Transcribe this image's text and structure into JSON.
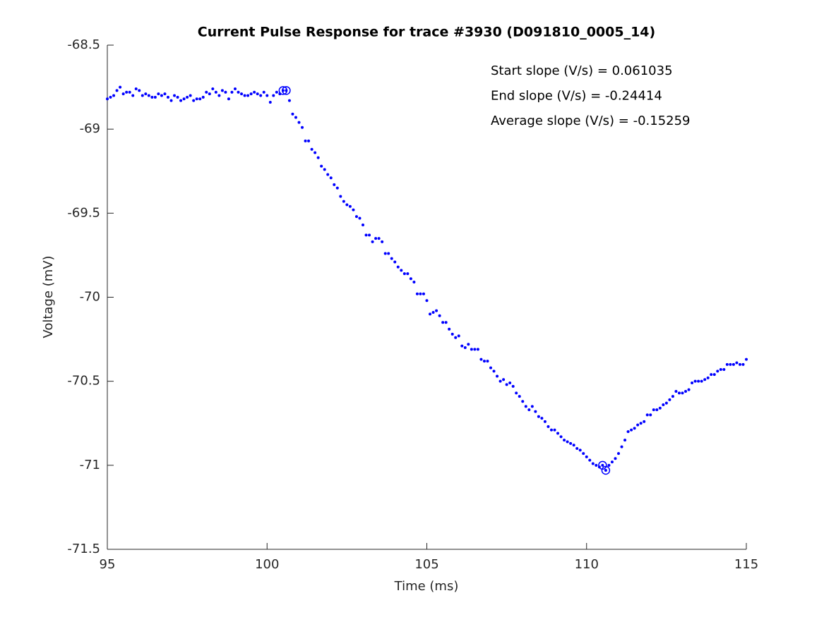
{
  "chart_data": {
    "type": "scatter",
    "title": "Current Pulse Response for trace #3930 (D091810_0005_14)",
    "x_label": "Time (ms)",
    "y_label": "Voltage (mV)",
    "annotations": [
      "Start slope (V/s) = 0.061035",
      "End slope (V/s) = -0.24414",
      "Average slope (V/s) = -0.15259"
    ],
    "xlim": [
      95,
      115
    ],
    "xticks": [
      95,
      100,
      105,
      110,
      115
    ],
    "ylim": [
      -71.5,
      -68.5
    ],
    "yticks": [
      -68.5,
      -69,
      -69.5,
      -70,
      -70.5,
      -71,
      -71.5
    ],
    "series": [
      {
        "color": "#0000ff",
        "marker": "dot",
        "x": [
          95.0,
          95.1,
          95.2,
          95.3,
          95.4,
          95.5,
          95.6,
          95.7,
          95.8,
          95.9,
          96.0,
          96.1,
          96.2,
          96.3,
          96.4,
          96.5,
          96.6,
          96.7,
          96.8,
          96.9,
          97.0,
          97.1,
          97.2,
          97.3,
          97.4,
          97.5,
          97.6,
          97.7,
          97.8,
          97.9,
          98.0,
          98.1,
          98.2,
          98.3,
          98.4,
          98.5,
          98.6,
          98.7,
          98.8,
          98.9,
          99.0,
          99.1,
          99.2,
          99.3,
          99.4,
          99.5,
          99.6,
          99.7,
          99.8,
          99.9,
          100.0,
          100.1,
          100.2,
          100.3,
          100.4,
          100.5,
          100.6,
          100.7,
          100.8,
          100.9,
          101.0,
          101.1,
          101.2,
          101.3,
          101.4,
          101.5,
          101.6,
          101.7,
          101.8,
          101.9,
          102.0,
          102.1,
          102.2,
          102.3,
          102.4,
          102.5,
          102.6,
          102.7,
          102.8,
          102.9,
          103.0,
          103.1,
          103.2,
          103.3,
          103.4,
          103.5,
          103.6,
          103.7,
          103.8,
          103.9,
          104.0,
          104.1,
          104.2,
          104.3,
          104.4,
          104.5,
          104.6,
          104.7,
          104.8,
          104.9,
          105.0,
          105.1,
          105.2,
          105.3,
          105.4,
          105.5,
          105.6,
          105.7,
          105.8,
          105.9,
          106.0,
          106.1,
          106.2,
          106.3,
          106.4,
          106.5,
          106.6,
          106.7,
          106.8,
          106.9,
          107.0,
          107.1,
          107.2,
          107.3,
          107.4,
          107.5,
          107.6,
          107.7,
          107.8,
          107.9,
          108.0,
          108.1,
          108.2,
          108.3,
          108.4,
          108.5,
          108.6,
          108.7,
          108.8,
          108.9,
          109.0,
          109.1,
          109.2,
          109.3,
          109.4,
          109.5,
          109.6,
          109.7,
          109.8,
          109.9,
          110.0,
          110.1,
          110.2,
          110.3,
          110.4,
          110.5,
          110.6,
          110.7,
          110.8,
          110.9,
          111.0,
          111.1,
          111.2,
          111.3,
          111.4,
          111.5,
          111.6,
          111.7,
          111.8,
          111.9,
          112.0,
          112.1,
          112.2,
          112.3,
          112.4,
          112.5,
          112.6,
          112.7,
          112.8,
          112.9,
          113.0,
          113.1,
          113.2,
          113.3,
          113.4,
          113.5,
          113.6,
          113.7,
          113.8,
          113.9,
          114.0,
          114.1,
          114.2,
          114.3,
          114.4,
          114.5,
          114.6,
          114.7,
          114.8,
          114.9,
          115.0
        ],
        "values": [
          -68.82,
          -68.81,
          -68.8,
          -68.77,
          -68.75,
          -68.79,
          -68.78,
          -68.78,
          -68.8,
          -68.76,
          -68.77,
          -68.8,
          -68.79,
          -68.8,
          -68.81,
          -68.81,
          -68.79,
          -68.8,
          -68.79,
          -68.81,
          -68.83,
          -68.8,
          -68.81,
          -68.83,
          -68.82,
          -68.81,
          -68.8,
          -68.83,
          -68.82,
          -68.82,
          -68.81,
          -68.78,
          -68.79,
          -68.76,
          -68.78,
          -68.8,
          -68.77,
          -68.78,
          -68.82,
          -68.78,
          -68.76,
          -68.78,
          -68.79,
          -68.8,
          -68.8,
          -68.79,
          -68.78,
          -68.79,
          -68.8,
          -68.78,
          -68.8,
          -68.84,
          -68.8,
          -68.78,
          -68.79,
          -68.77,
          -68.77,
          -68.83,
          -68.91,
          -68.93,
          -68.96,
          -68.99,
          -69.07,
          -69.07,
          -69.12,
          -69.14,
          -69.17,
          -69.22,
          -69.24,
          -69.27,
          -69.29,
          -69.33,
          -69.35,
          -69.4,
          -69.43,
          -69.45,
          -69.46,
          -69.48,
          -69.52,
          -69.53,
          -69.57,
          -69.63,
          -69.63,
          -69.67,
          -69.65,
          -69.65,
          -69.67,
          -69.74,
          -69.74,
          -69.77,
          -69.79,
          -69.82,
          -69.84,
          -69.86,
          -69.86,
          -69.89,
          -69.91,
          -69.98,
          -69.98,
          -69.98,
          -70.02,
          -70.1,
          -70.09,
          -70.08,
          -70.11,
          -70.15,
          -70.15,
          -70.19,
          -70.22,
          -70.24,
          -70.23,
          -70.29,
          -70.3,
          -70.28,
          -70.31,
          -70.31,
          -70.31,
          -70.37,
          -70.38,
          -70.38,
          -70.42,
          -70.44,
          -70.47,
          -70.5,
          -70.49,
          -70.52,
          -70.51,
          -70.53,
          -70.57,
          -70.59,
          -70.62,
          -70.65,
          -70.67,
          -70.65,
          -70.68,
          -70.71,
          -70.72,
          -70.74,
          -70.77,
          -70.79,
          -70.79,
          -70.81,
          -70.83,
          -70.85,
          -70.86,
          -70.87,
          -70.88,
          -70.9,
          -70.91,
          -70.93,
          -70.95,
          -70.97,
          -70.99,
          -71.0,
          -71.01,
          -71.0,
          -71.03,
          -71.0,
          -70.98,
          -70.96,
          -70.93,
          -70.89,
          -70.85,
          -70.8,
          -70.79,
          -70.78,
          -70.76,
          -70.75,
          -70.74,
          -70.7,
          -70.7,
          -70.67,
          -70.67,
          -70.66,
          -70.64,
          -70.63,
          -70.61,
          -70.59,
          -70.56,
          -70.57,
          -70.57,
          -70.56,
          -70.55,
          -70.51,
          -70.5,
          -70.5,
          -70.5,
          -70.49,
          -70.48,
          -70.46,
          -70.46,
          -70.44,
          -70.43,
          -70.43,
          -70.4,
          -70.4,
          -70.4,
          -70.39,
          -70.4,
          -70.4,
          -70.37
        ]
      },
      {
        "color": "#0000ff",
        "marker": "circle",
        "x": [
          100.5,
          100.6,
          110.5,
          110.6
        ],
        "values": [
          -68.77,
          -68.77,
          -71.0,
          -71.03
        ]
      }
    ]
  }
}
